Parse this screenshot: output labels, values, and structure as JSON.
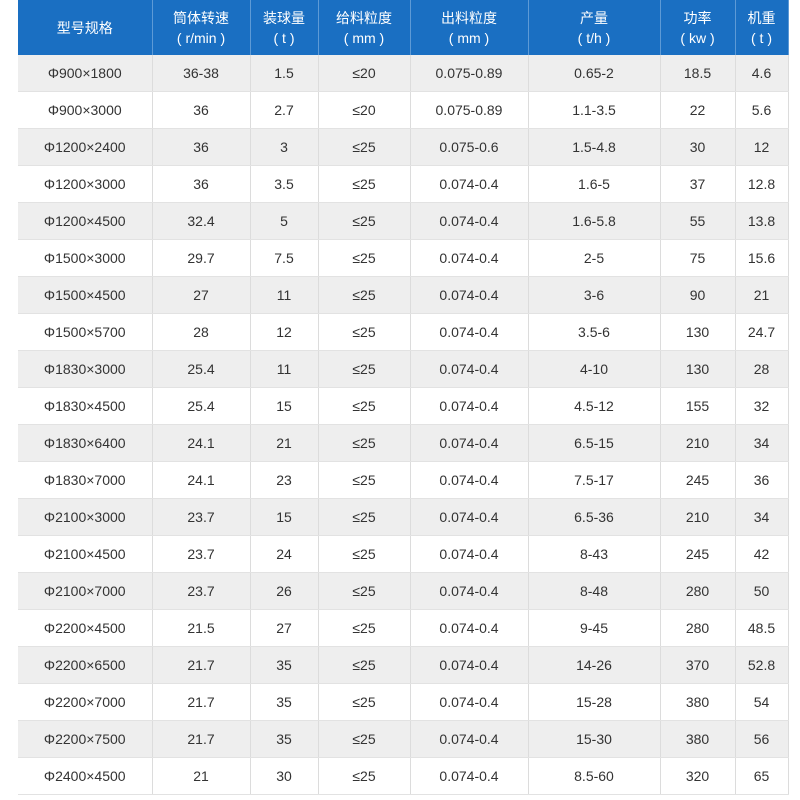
{
  "table": {
    "header": [
      {
        "title": "型号规格"
      },
      {
        "title": "筒体转速",
        "unit": "( r/min )"
      },
      {
        "title": "装球量",
        "unit": "( t )"
      },
      {
        "title": "给料粒度",
        "unit": "( mm )"
      },
      {
        "title": "出料粒度",
        "unit": "( mm )"
      },
      {
        "title": "产量",
        "unit": "( t/h )"
      },
      {
        "title": "功率",
        "unit": "( kw )"
      },
      {
        "title": "机重",
        "unit": "( t )"
      }
    ],
    "rows": [
      [
        "Φ900×1800",
        "36-38",
        "1.5",
        "≤20",
        "0.075-0.89",
        "0.65-2",
        "18.5",
        "4.6"
      ],
      [
        "Φ900×3000",
        "36",
        "2.7",
        "≤20",
        "0.075-0.89",
        "1.1-3.5",
        "22",
        "5.6"
      ],
      [
        "Φ1200×2400",
        "36",
        "3",
        "≤25",
        "0.075-0.6",
        "1.5-4.8",
        "30",
        "12"
      ],
      [
        "Φ1200×3000",
        "36",
        "3.5",
        "≤25",
        "0.074-0.4",
        "1.6-5",
        "37",
        "12.8"
      ],
      [
        "Φ1200×4500",
        "32.4",
        "5",
        "≤25",
        "0.074-0.4",
        "1.6-5.8",
        "55",
        "13.8"
      ],
      [
        "Φ1500×3000",
        "29.7",
        "7.5",
        "≤25",
        "0.074-0.4",
        "2-5",
        "75",
        "15.6"
      ],
      [
        "Φ1500×4500",
        "27",
        "11",
        "≤25",
        "0.074-0.4",
        "3-6",
        "90",
        "21"
      ],
      [
        "Φ1500×5700",
        "28",
        "12",
        "≤25",
        "0.074-0.4",
        "3.5-6",
        "130",
        "24.7"
      ],
      [
        "Φ1830×3000",
        "25.4",
        "11",
        "≤25",
        "0.074-0.4",
        "4-10",
        "130",
        "28"
      ],
      [
        "Φ1830×4500",
        "25.4",
        "15",
        "≤25",
        "0.074-0.4",
        "4.5-12",
        "155",
        "32"
      ],
      [
        "Φ1830×6400",
        "24.1",
        "21",
        "≤25",
        "0.074-0.4",
        "6.5-15",
        "210",
        "34"
      ],
      [
        "Φ1830×7000",
        "24.1",
        "23",
        "≤25",
        "0.074-0.4",
        "7.5-17",
        "245",
        "36"
      ],
      [
        "Φ2100×3000",
        "23.7",
        "15",
        "≤25",
        "0.074-0.4",
        "6.5-36",
        "210",
        "34"
      ],
      [
        "Φ2100×4500",
        "23.7",
        "24",
        "≤25",
        "0.074-0.4",
        "8-43",
        "245",
        "42"
      ],
      [
        "Φ2100×7000",
        "23.7",
        "26",
        "≤25",
        "0.074-0.4",
        "8-48",
        "280",
        "50"
      ],
      [
        "Φ2200×4500",
        "21.5",
        "27",
        "≤25",
        "0.074-0.4",
        "9-45",
        "280",
        "48.5"
      ],
      [
        "Φ2200×6500",
        "21.7",
        "35",
        "≤25",
        "0.074-0.4",
        "14-26",
        "370",
        "52.8"
      ],
      [
        "Φ2200×7000",
        "21.7",
        "35",
        "≤25",
        "0.074-0.4",
        "15-28",
        "380",
        "54"
      ],
      [
        "Φ2200×7500",
        "21.7",
        "35",
        "≤25",
        "0.074-0.4",
        "15-30",
        "380",
        "56"
      ],
      [
        "Φ2400×4500",
        "21",
        "30",
        "≤25",
        "0.074-0.4",
        "8.5-60",
        "320",
        "65"
      ]
    ]
  }
}
